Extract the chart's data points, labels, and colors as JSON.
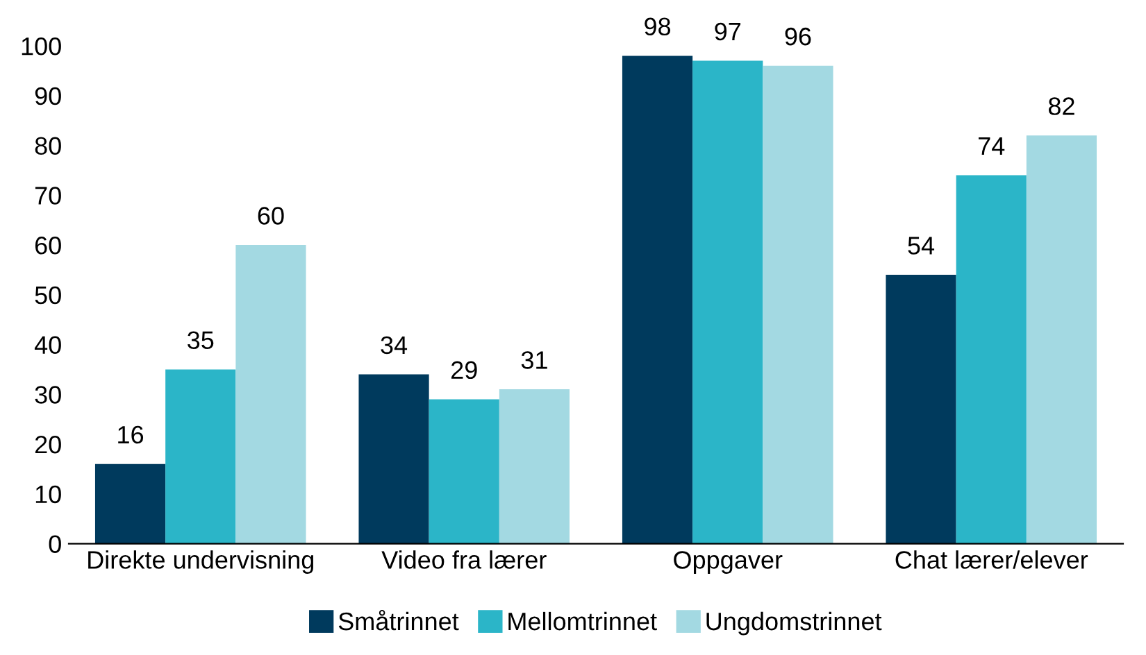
{
  "chart_data": {
    "type": "bar",
    "categories": [
      "Direkte undervisning",
      "Video fra lærer",
      "Oppgaver",
      "Chat lærer/elever"
    ],
    "series": [
      {
        "name": "Småtrinnet",
        "color": "#003a5d",
        "values": [
          16,
          34,
          98,
          54
        ]
      },
      {
        "name": "Mellomtrinnet",
        "color": "#2bb5c8",
        "values": [
          35,
          29,
          97,
          74
        ]
      },
      {
        "name": "Ungdomstrinnet",
        "color": "#a3d9e2",
        "values": [
          60,
          31,
          96,
          82
        ]
      }
    ],
    "ylim": [
      0,
      100
    ],
    "yticks": [
      0,
      10,
      20,
      30,
      40,
      50,
      60,
      70,
      80,
      90,
      100
    ],
    "data_labels": true,
    "grid": false,
    "legend": "bottom"
  }
}
